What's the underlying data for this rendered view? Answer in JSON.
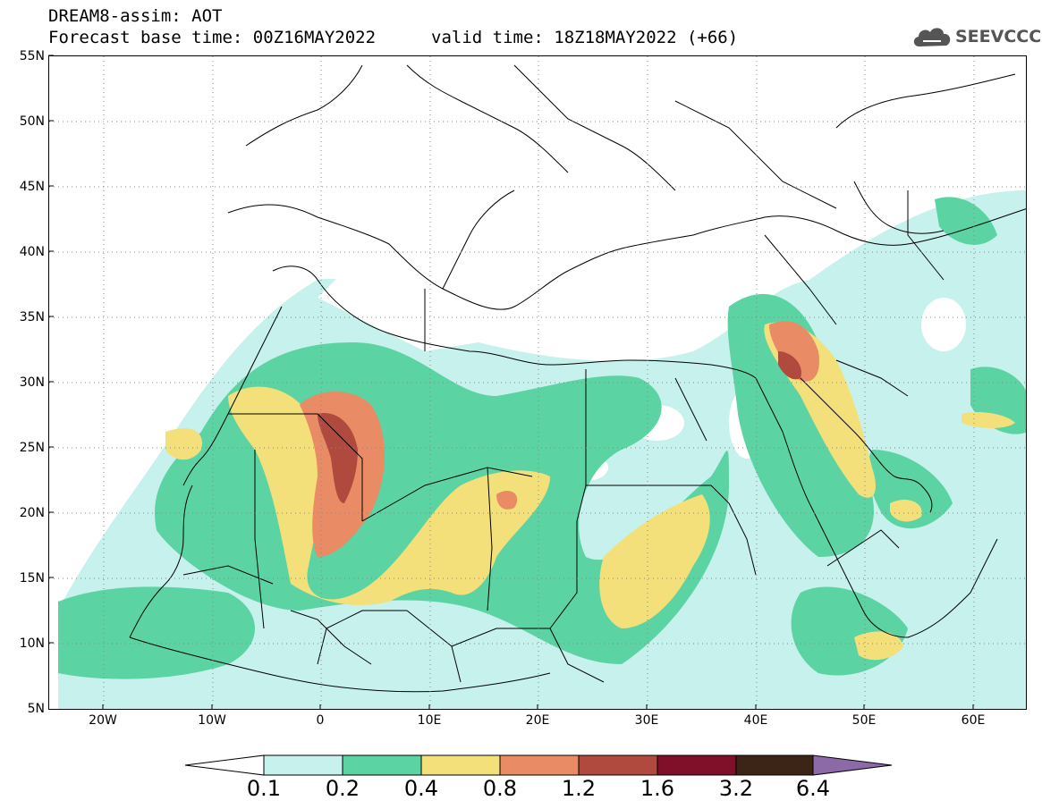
{
  "header": {
    "line1": "DREAM8-assim: AOT",
    "line2_left": "Forecast base time: 00Z16MAY2022",
    "line2_right": "valid time: 18Z18MAY2022 (+66)",
    "logo_text": "SEEVCCC"
  },
  "axes": {
    "lat_labels": [
      "55N",
      "50N",
      "45N",
      "40N",
      "35N",
      "30N",
      "25N",
      "20N",
      "15N",
      "10N",
      "5N"
    ],
    "lon_labels": [
      "20W",
      "10W",
      "0",
      "10E",
      "20E",
      "30E",
      "40E",
      "50E",
      "60E"
    ]
  },
  "colorbar": {
    "labels": [
      "0.1",
      "0.2",
      "0.4",
      "0.8",
      "1.2",
      "1.6",
      "3.2",
      "6.4"
    ],
    "colors": [
      "#c6f1ec",
      "#5bd3a3",
      "#f3e07a",
      "#e98c65",
      "#b04a3e",
      "#80102a",
      "#3c2416",
      "#8c6aa8"
    ]
  },
  "map_region": {
    "lat_range": [
      "5N",
      "55N"
    ],
    "lon_range": [
      "25W",
      "65E"
    ],
    "grid": "dotted"
  }
}
